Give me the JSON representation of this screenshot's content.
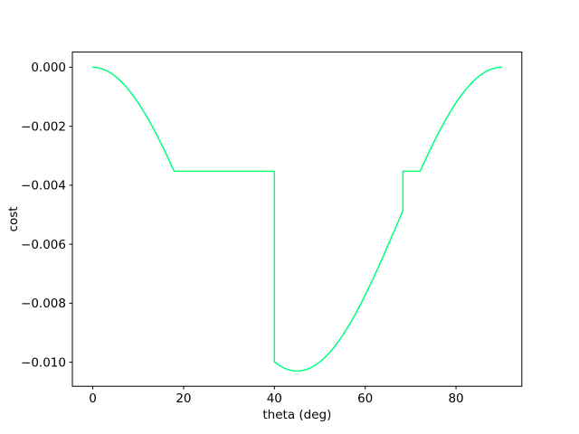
{
  "figure": {
    "background": "#ffffff",
    "title": ""
  },
  "colors": {
    "line": "#00FF7F",
    "spine": "#000000",
    "tick": "#000000",
    "text": "#000000",
    "background": "#ffffff"
  },
  "chart_data": {
    "type": "line",
    "title": "",
    "xlabel": "theta (deg)",
    "ylabel": "cost",
    "xlim": [
      -4.5,
      94.5
    ],
    "ylim": [
      -0.010815,
      0.000515
    ],
    "grid": false,
    "legend": null,
    "xticks": {
      "values": [
        0,
        20,
        40,
        60,
        80
      ],
      "labels": [
        "0",
        "20",
        "40",
        "60",
        "80"
      ]
    },
    "yticks": {
      "values": [
        0.0,
        -0.002,
        -0.004,
        -0.006,
        -0.008,
        -0.01
      ],
      "labels": [
        "0.000",
        "−0.002",
        "−0.004",
        "−0.006",
        "−0.008",
        "−0.010"
      ]
    },
    "series": [
      {
        "name": "cost",
        "color": "#00FF7F",
        "line_width": 1.5,
        "x": [
          0,
          1,
          2,
          3,
          4,
          5,
          6,
          7,
          8,
          9,
          10,
          11,
          12,
          13,
          14,
          15,
          16,
          17,
          17.9,
          40,
          40,
          41,
          42,
          43,
          44,
          45,
          46,
          47,
          48,
          49,
          50,
          51,
          52,
          53,
          54,
          55,
          56,
          57,
          58,
          59,
          60,
          61,
          62,
          63,
          64,
          65,
          66,
          67,
          68,
          68.3,
          68.3,
          72.1,
          73,
          74,
          75,
          76,
          77,
          78,
          79,
          80,
          81,
          82,
          83,
          84,
          85,
          86,
          87,
          88,
          89,
          90
        ],
        "y": [
          0.0,
          -1.25e-05,
          -5.01e-05,
          -0.0001125,
          -0.0001995,
          -0.0003106,
          -0.0004452,
          -0.0006028,
          -0.0007825,
          -0.0009836,
          -0.0012049,
          -0.0014454,
          -0.001704,
          -0.0019793,
          -0.0022702,
          -0.002575,
          -0.0028924,
          -0.0032204,
          -0.0035243,
          -0.0035243,
          -0.0099894,
          -0.0101005,
          -0.0101875,
          -0.0102499,
          -0.0102875,
          -0.0103,
          -0.0102875,
          -0.0102499,
          -0.0101875,
          -0.0101005,
          -0.0099894,
          -0.0098548,
          -0.0096972,
          -0.0095174,
          -0.0093164,
          -0.0090951,
          -0.0088546,
          -0.008596,
          -0.0083207,
          -0.0080298,
          -0.007725,
          -0.0074076,
          -0.0070792,
          -0.0067414,
          -0.0063959,
          -0.0060443,
          -0.0056883,
          -0.0053297,
          -0.0049703,
          -0.0048612,
          -0.0035243,
          -0.0035243,
          -0.0032208,
          -0.0028924,
          -0.002575,
          -0.0022702,
          -0.0019793,
          -0.001704,
          -0.0014454,
          -0.0012049,
          -0.0009836,
          -0.0007825,
          -0.0006028,
          -0.0004452,
          -0.0003106,
          -0.0001995,
          -0.0001125,
          -5.01e-05,
          -1.25e-05,
          0.0
        ]
      }
    ],
    "annotations": {
      "plateau_value": -0.0035243,
      "plateau_intervals": [
        [
          17.9,
          40
        ],
        [
          68.3,
          72.1
        ]
      ],
      "discontinuities_at_x": [
        40,
        68.3
      ],
      "min_point": {
        "x": 45,
        "y": -0.0103
      },
      "endpoints": [
        {
          "x": 0,
          "y": 0.0
        },
        {
          "x": 90,
          "y": 0.0
        }
      ]
    }
  }
}
